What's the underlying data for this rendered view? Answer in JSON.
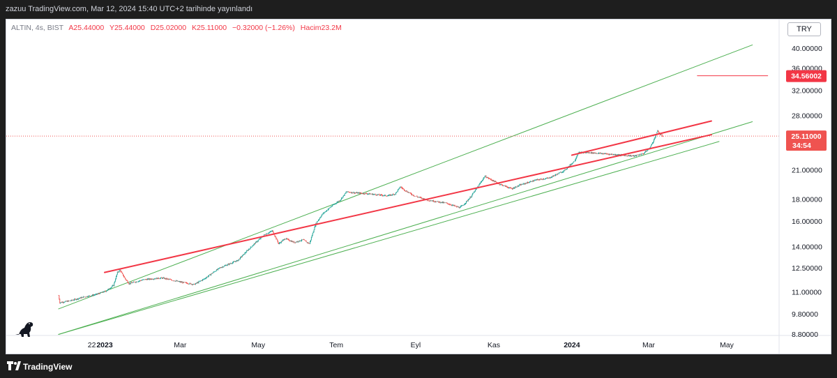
{
  "header": {
    "publish_line": "zazuu TradingView.com, Mar 12, 2024 15:40 UTC+2 tarihinde yayınlandı"
  },
  "legend": {
    "symbol": "ALTIN, 4s, BIST",
    "open": "A25.44000",
    "high": "Y25.44000",
    "low": "D25.02000",
    "close": "K25.11000",
    "change": "−0.32000 (−1.26%)",
    "volume": "Hacim23.2M"
  },
  "toolbar": {
    "currency": "TRY"
  },
  "footer": {
    "brand": "TradingView"
  },
  "colors": {
    "up": "#26a69a",
    "down": "#ef5350",
    "channel": "#4caf50",
    "trendline": "#f23645",
    "axis_text": "#131722"
  },
  "chart_data": {
    "type": "candlestick",
    "symbol": "ALTIN",
    "interval": "4s",
    "exchange": "BIST",
    "scale": "log",
    "y_ticks": [
      "8.80000",
      "9.80000",
      "11.00000",
      "12.50000",
      "14.00000",
      "16.00000",
      "18.00000",
      "21.00000",
      "25.11000",
      "28.00000",
      "32.00000",
      "36.00000",
      "40.00000"
    ],
    "x_ticks": [
      {
        "label": "22",
        "date": "2022-12-22",
        "bold": false
      },
      {
        "label": "2023",
        "date": "2023-01-01",
        "bold": true
      },
      {
        "label": "Mar",
        "date": "2023-03-01",
        "bold": false
      },
      {
        "label": "May",
        "date": "2023-05-01",
        "bold": false
      },
      {
        "label": "Tem",
        "date": "2023-07-01",
        "bold": false
      },
      {
        "label": "Eyl",
        "date": "2023-09-01",
        "bold": false
      },
      {
        "label": "Kas",
        "date": "2023-11-01",
        "bold": false
      },
      {
        "label": "2024",
        "date": "2024-01-01",
        "bold": true
      },
      {
        "label": "Mar",
        "date": "2024-03-01",
        "bold": false
      },
      {
        "label": "May",
        "date": "2024-05-01",
        "bold": false
      }
    ],
    "price_path": [
      {
        "date": "2022-11-26",
        "close": 10.8
      },
      {
        "date": "2022-11-27",
        "close": 10.4
      },
      {
        "date": "2022-12-05",
        "close": 10.5
      },
      {
        "date": "2022-12-15",
        "close": 10.7
      },
      {
        "date": "2022-12-25",
        "close": 10.85
      },
      {
        "date": "2023-01-02",
        "close": 11.05
      },
      {
        "date": "2023-01-08",
        "close": 11.4
      },
      {
        "date": "2023-01-11",
        "close": 12.2
      },
      {
        "date": "2023-01-13",
        "close": 12.35
      },
      {
        "date": "2023-01-17",
        "close": 11.8
      },
      {
        "date": "2023-01-20",
        "close": 11.5
      },
      {
        "date": "2023-02-01",
        "close": 11.75
      },
      {
        "date": "2023-02-15",
        "close": 11.85
      },
      {
        "date": "2023-03-01",
        "close": 11.6
      },
      {
        "date": "2023-03-12",
        "close": 11.45
      },
      {
        "date": "2023-03-20",
        "close": 11.8
      },
      {
        "date": "2023-04-01",
        "close": 12.5
      },
      {
        "date": "2023-04-15",
        "close": 13.0
      },
      {
        "date": "2023-04-28",
        "close": 14.2
      },
      {
        "date": "2023-05-06",
        "close": 14.9
      },
      {
        "date": "2023-05-12",
        "close": 15.2
      },
      {
        "date": "2023-05-17",
        "close": 14.2
      },
      {
        "date": "2023-05-22",
        "close": 14.6
      },
      {
        "date": "2023-05-29",
        "close": 14.3
      },
      {
        "date": "2023-06-05",
        "close": 14.5
      },
      {
        "date": "2023-06-10",
        "close": 14.2
      },
      {
        "date": "2023-06-15",
        "close": 15.8
      },
      {
        "date": "2023-06-20",
        "close": 16.6
      },
      {
        "date": "2023-06-27",
        "close": 17.3
      },
      {
        "date": "2023-07-04",
        "close": 17.9
      },
      {
        "date": "2023-07-09",
        "close": 18.7
      },
      {
        "date": "2023-07-15",
        "close": 18.6
      },
      {
        "date": "2023-07-26",
        "close": 18.5
      },
      {
        "date": "2023-08-10",
        "close": 18.3
      },
      {
        "date": "2023-08-16",
        "close": 18.5
      },
      {
        "date": "2023-08-20",
        "close": 19.2
      },
      {
        "date": "2023-08-24",
        "close": 18.8
      },
      {
        "date": "2023-08-31",
        "close": 18.3
      },
      {
        "date": "2023-09-10",
        "close": 17.9
      },
      {
        "date": "2023-09-25",
        "close": 17.6
      },
      {
        "date": "2023-10-05",
        "close": 17.2
      },
      {
        "date": "2023-10-08",
        "close": 17.4
      },
      {
        "date": "2023-10-14",
        "close": 18.2
      },
      {
        "date": "2023-10-20",
        "close": 19.3
      },
      {
        "date": "2023-10-25",
        "close": 20.3
      },
      {
        "date": "2023-10-29",
        "close": 20.0
      },
      {
        "date": "2023-11-05",
        "close": 19.5
      },
      {
        "date": "2023-11-15",
        "close": 19.0
      },
      {
        "date": "2023-11-22",
        "close": 19.4
      },
      {
        "date": "2023-12-04",
        "close": 19.9
      },
      {
        "date": "2023-12-14",
        "close": 20.1
      },
      {
        "date": "2023-12-26",
        "close": 20.9
      },
      {
        "date": "2024-01-03",
        "close": 22.0
      },
      {
        "date": "2024-01-06",
        "close": 23.0
      },
      {
        "date": "2024-01-15",
        "close": 23.0
      },
      {
        "date": "2024-01-28",
        "close": 22.85
      },
      {
        "date": "2024-02-08",
        "close": 22.7
      },
      {
        "date": "2024-02-19",
        "close": 22.6
      },
      {
        "date": "2024-02-26",
        "close": 22.9
      },
      {
        "date": "2024-03-02",
        "close": 23.6
      },
      {
        "date": "2024-03-05",
        "close": 24.6
      },
      {
        "date": "2024-03-08",
        "close": 25.8
      },
      {
        "date": "2024-03-10",
        "close": 25.3
      },
      {
        "date": "2024-03-12",
        "close": 25.11
      }
    ],
    "drawings": {
      "channel_upper": {
        "start": {
          "date": "2022-11-26",
          "price": 10.06
        },
        "end": {
          "date": "2024-05-21",
          "price": 40.68
        }
      },
      "channel_middle": {
        "start": {
          "date": "2022-11-26",
          "price": 8.79
        },
        "end": {
          "date": "2024-05-21",
          "price": 27.1
        }
      },
      "channel_lower": {
        "start": {
          "date": "2022-11-26",
          "price": 8.79
        },
        "end": {
          "date": "2024-04-25",
          "price": 24.4
        }
      },
      "trendline_main": {
        "start": {
          "date": "2023-01-01",
          "price": 12.2
        },
        "end": {
          "date": "2024-04-19",
          "price": 25.3
        }
      },
      "trendline_steep": {
        "start": {
          "date": "2024-01-01",
          "price": 22.7
        },
        "end": {
          "date": "2024-04-19",
          "price": 27.2
        }
      },
      "target_line": {
        "start": {
          "date": "2024-04-08",
          "price": 34.56002
        },
        "end": {
          "date": "2024-06-02",
          "price": 34.56002
        }
      }
    },
    "last_price": {
      "value": "25.11000",
      "countdown": "34:54"
    },
    "target_price": {
      "value": "34.56002"
    }
  }
}
